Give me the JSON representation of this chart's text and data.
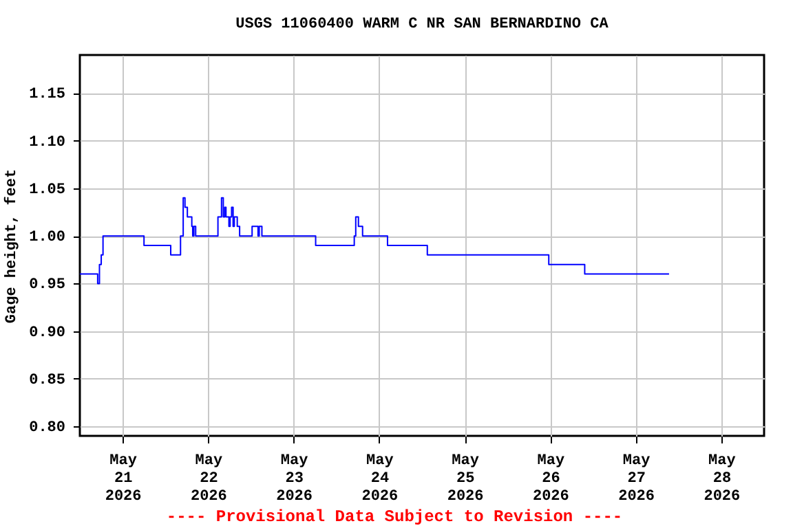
{
  "chart_data": {
    "type": "step",
    "title": "USGS 11060400 WARM C NR SAN BERNARDINO CA",
    "ylabel": "Gage height, feet",
    "annotations": [
      "---- Provisional Data Subject to Revision ----"
    ],
    "x": [
      "2026-05-20T12:00",
      "2026-05-20T17:00",
      "2026-05-20T17:30",
      "2026-05-20T18:00",
      "2026-05-20T18:30",
      "2026-05-21T06:00",
      "2026-05-21T13:30",
      "2026-05-21T16:15",
      "2026-05-21T17:00",
      "2026-05-21T17:30",
      "2026-05-21T18:10",
      "2026-05-21T19:25",
      "2026-05-21T19:40",
      "2026-05-21T20:00",
      "2026-05-21T20:30",
      "2026-05-22T02:45",
      "2026-05-22T03:45",
      "2026-05-22T04:15",
      "2026-05-22T04:40",
      "2026-05-22T05:00",
      "2026-05-22T05:50",
      "2026-05-22T06:10",
      "2026-05-22T06:35",
      "2026-05-22T07:00",
      "2026-05-22T07:20",
      "2026-05-22T08:10",
      "2026-05-22T08:50",
      "2026-05-22T12:20",
      "2026-05-22T14:00",
      "2026-05-22T14:20",
      "2026-05-22T15:05",
      "2026-05-23T06:10",
      "2026-05-23T17:00",
      "2026-05-23T17:25",
      "2026-05-23T18:10",
      "2026-05-23T19:20",
      "2026-05-24T02:20",
      "2026-05-24T13:30",
      "2026-05-25T23:35",
      "2026-05-26T09:40",
      "2026-05-27T09:20"
    ],
    "series": [
      {
        "color": "#0000ff",
        "values": [
          0.96,
          0.95,
          0.97,
          0.98,
          1.0,
          0.99,
          0.98,
          1.0,
          1.04,
          1.03,
          1.02,
          1.01,
          1.0,
          1.01,
          1.0,
          1.02,
          1.04,
          1.02,
          1.03,
          1.02,
          1.01,
          1.02,
          1.03,
          1.01,
          1.02,
          1.01,
          1.0,
          1.01,
          1.0,
          1.01,
          1.0,
          0.99,
          1.0,
          1.02,
          1.01,
          1.0,
          0.99,
          0.98,
          0.97,
          0.96,
          0.96
        ]
      }
    ],
    "xlim": [
      "2026-05-20T12:00",
      "2026-05-28T12:00"
    ],
    "xticks": [
      {
        "value": "2026-05-21",
        "label": "May 21 2026"
      },
      {
        "value": "2026-05-22",
        "label": "May 22 2026"
      },
      {
        "value": "2026-05-23",
        "label": "May 23 2026"
      },
      {
        "value": "2026-05-24",
        "label": "May 24 2026"
      },
      {
        "value": "2026-05-25",
        "label": "May 25 2026"
      },
      {
        "value": "2026-05-26",
        "label": "May 26 2026"
      },
      {
        "value": "2026-05-27",
        "label": "May 27 2026"
      },
      {
        "value": "2026-05-28",
        "label": "May 28 2026"
      }
    ],
    "ylim": [
      0.79,
      1.19
    ],
    "yticks": [
      {
        "value": 0.8,
        "label": "0.80"
      },
      {
        "value": 0.85,
        "label": "0.85"
      },
      {
        "value": 0.9,
        "label": "0.90"
      },
      {
        "value": 0.95,
        "label": "0.95"
      },
      {
        "value": 1.0,
        "label": "1.00"
      },
      {
        "value": 1.05,
        "label": "1.05"
      },
      {
        "value": 1.1,
        "label": "1.10"
      },
      {
        "value": 1.15,
        "label": "1.15"
      }
    ],
    "grid": true,
    "marker": "none",
    "line_style": "solid"
  }
}
